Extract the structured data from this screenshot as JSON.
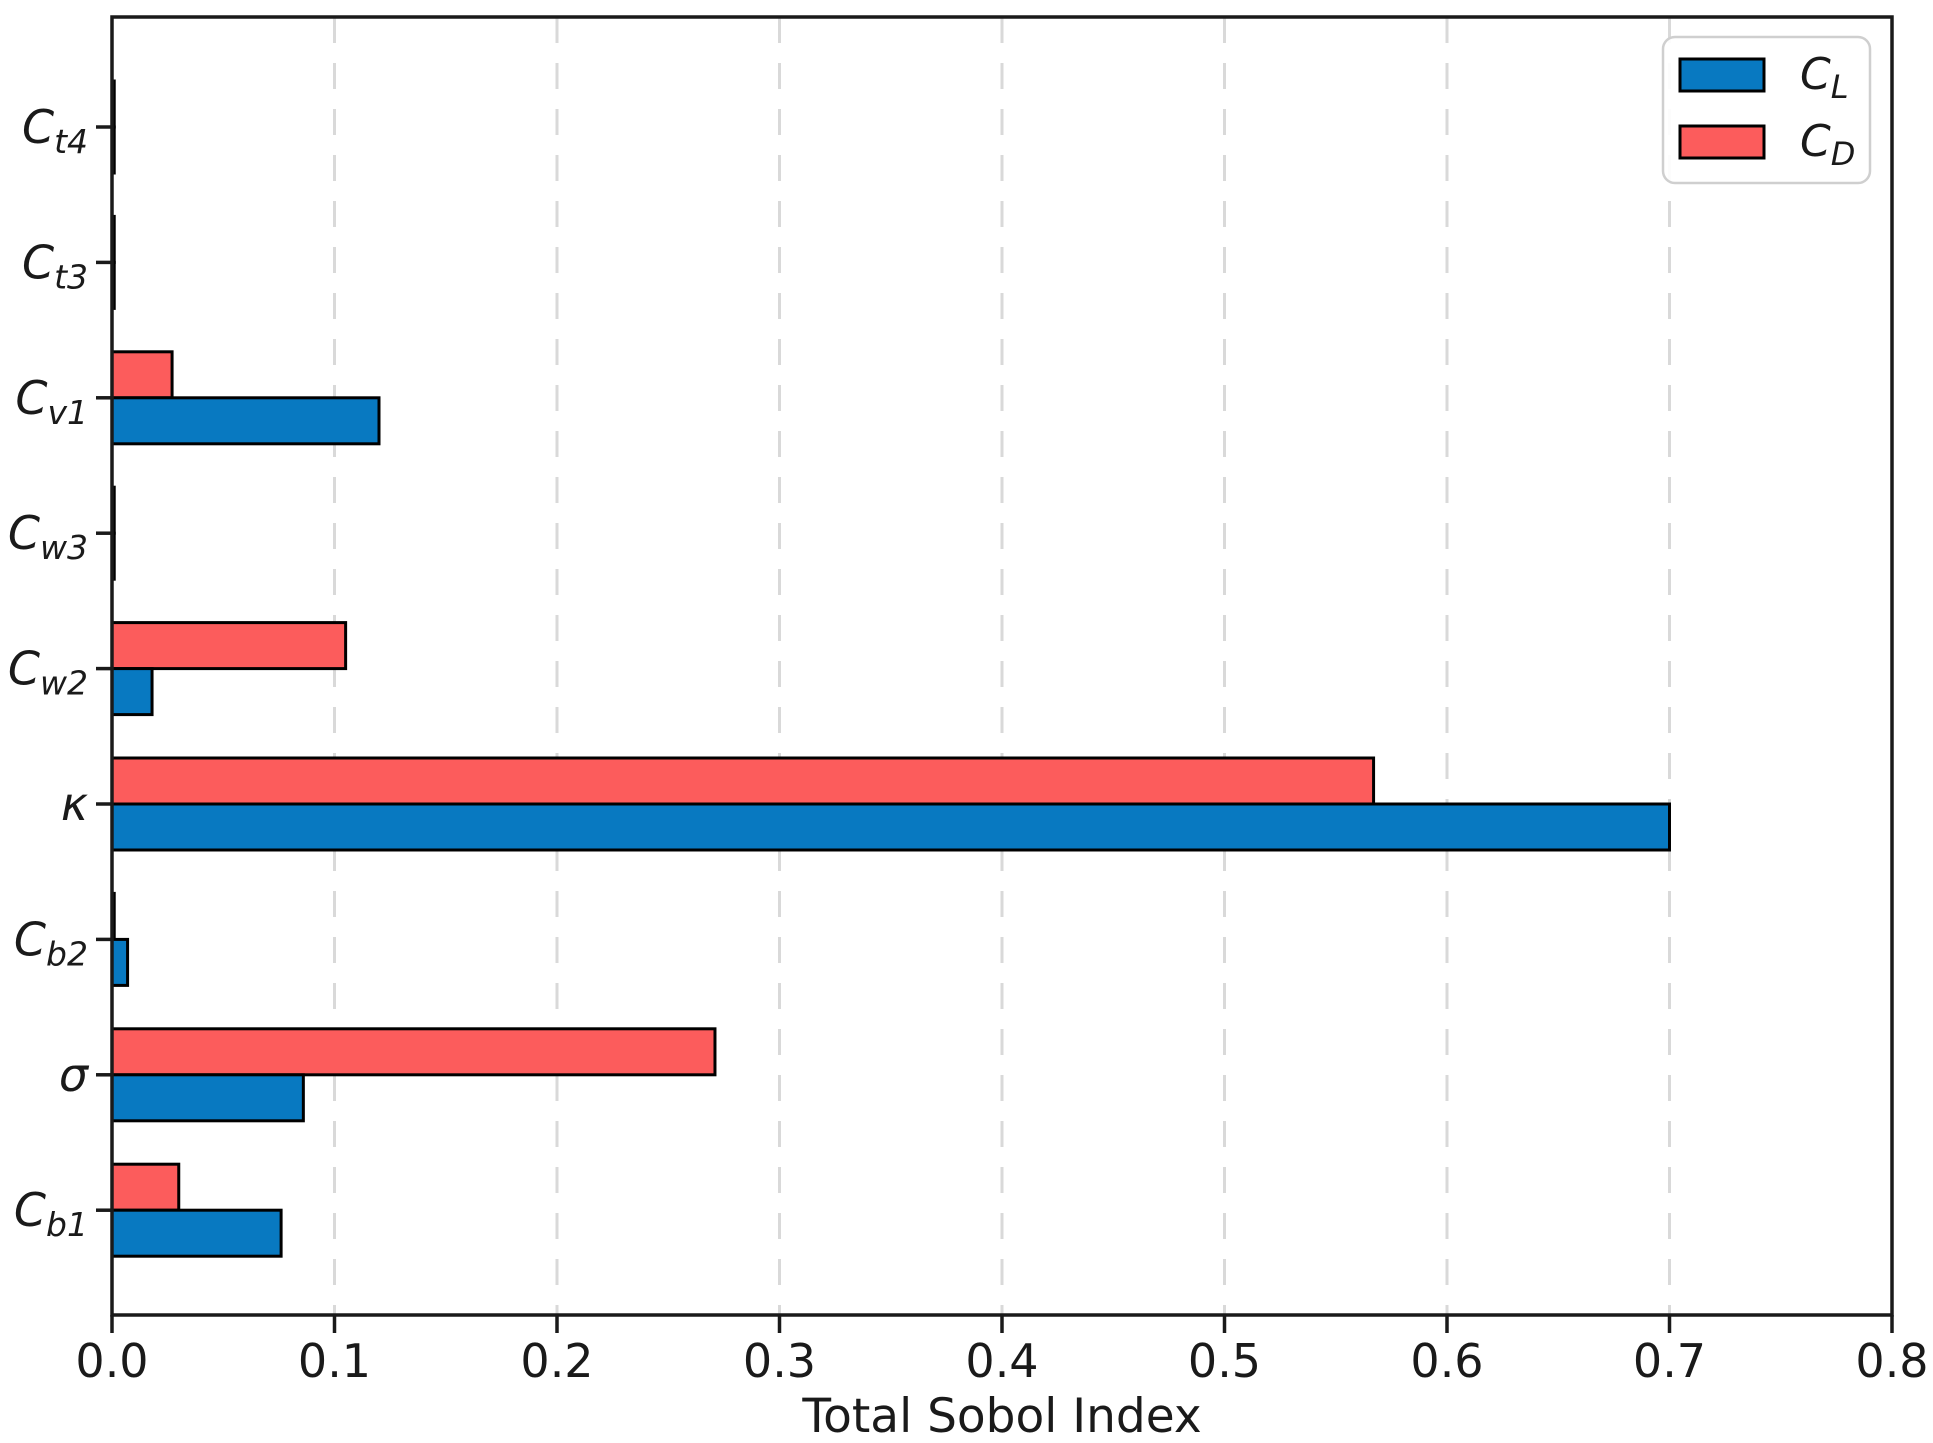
{
  "chart_data": {
    "type": "bar",
    "orientation": "horizontal",
    "xlabel": "Total Sobol Index",
    "xlim": [
      0.0,
      0.8
    ],
    "xticks": [
      0.0,
      0.1,
      0.2,
      0.3,
      0.4,
      0.5,
      0.6,
      0.7,
      0.8
    ],
    "xtick_labels": [
      "0.0",
      "0.1",
      "0.2",
      "0.3",
      "0.4",
      "0.5",
      "0.6",
      "0.7",
      "0.8"
    ],
    "grid": "vertical-dashed",
    "gridline_color": "#d9d9d9",
    "bar_edge_color": "#000000",
    "axis_color": "#1a1a1a",
    "legend_position": "upper-right",
    "categories": [
      {
        "base": "C",
        "sub": "t4"
      },
      {
        "base": "C",
        "sub": "t3"
      },
      {
        "base": "C",
        "sub": "v1"
      },
      {
        "base": "C",
        "sub": "w3"
      },
      {
        "base": "C",
        "sub": "w2"
      },
      {
        "base": "κ",
        "sub": ""
      },
      {
        "base": "C",
        "sub": "b2"
      },
      {
        "base": "σ",
        "sub": ""
      },
      {
        "base": "C",
        "sub": "b1"
      }
    ],
    "series": [
      {
        "name_base": "C",
        "name_sub": "L",
        "color": "#0879c1",
        "position": "below-center",
        "values": [
          0.001,
          0.001,
          0.12,
          0.001,
          0.018,
          0.7,
          0.007,
          0.086,
          0.076
        ]
      },
      {
        "name_base": "C",
        "name_sub": "D",
        "color": "#fc5c5c",
        "position": "above-center",
        "values": [
          0.001,
          0.001,
          0.027,
          0.001,
          0.105,
          0.567,
          0.001,
          0.271,
          0.03
        ]
      }
    ]
  }
}
